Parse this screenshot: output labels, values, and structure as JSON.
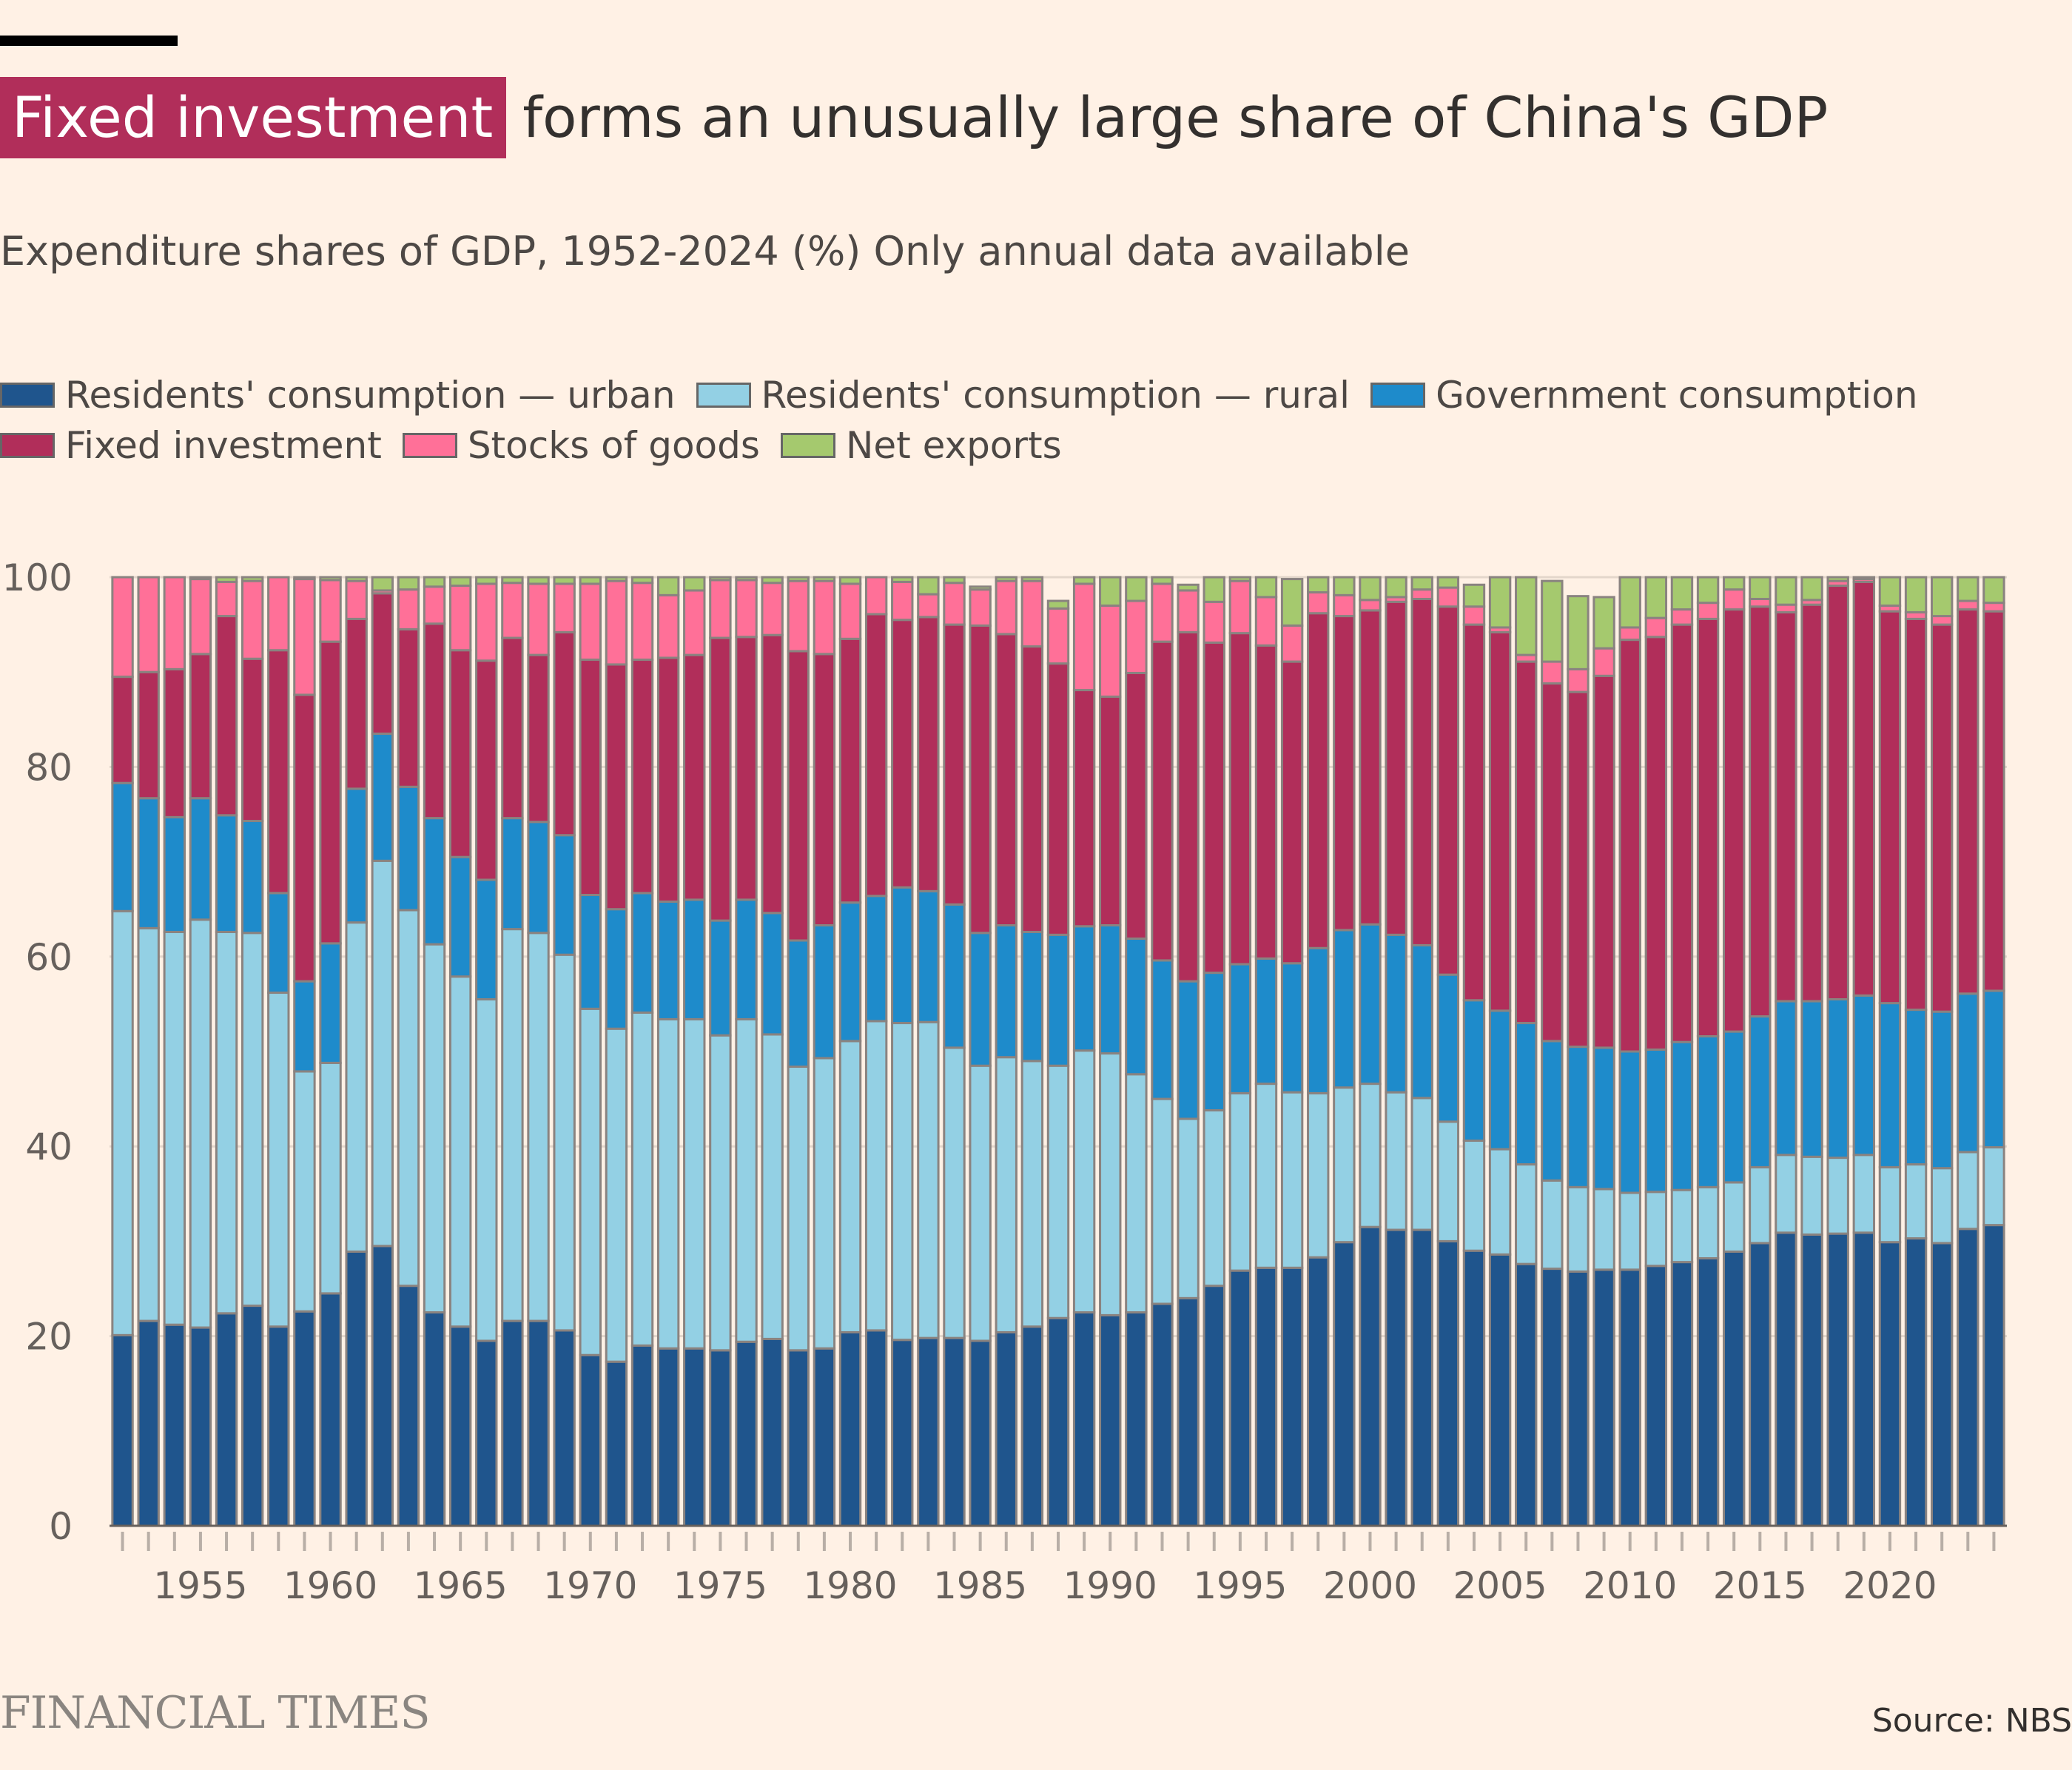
{
  "header": {
    "highlight": "Fixed investment",
    "title_rest": "forms an unusually large share of China's GDP",
    "subtitle": "Expenditure shares of GDP, 1952-2024 (%) Only annual data available"
  },
  "footer": {
    "brand": "FINANCIAL TIMES",
    "source": "Source: NBS"
  },
  "chart_data": {
    "type": "bar",
    "stacked": true,
    "title": "Fixed investment forms an unusually large share of China's GDP",
    "subtitle": "Expenditure shares of GDP, 1952-2024 (%) Only annual data available",
    "xlabel": "",
    "ylabel": "",
    "ylim": [
      0,
      100
    ],
    "yticks": [
      0,
      20,
      40,
      60,
      80,
      100
    ],
    "xtick_labels": [
      "1955",
      "1960",
      "1965",
      "1970",
      "1975",
      "1980",
      "1985",
      "1990",
      "1995",
      "2000",
      "2005",
      "2010",
      "2015",
      "2020"
    ],
    "grid": true,
    "legend_position": "top-left",
    "categories": [
      1952,
      1953,
      1954,
      1955,
      1956,
      1957,
      1958,
      1959,
      1960,
      1961,
      1962,
      1963,
      1964,
      1965,
      1966,
      1967,
      1968,
      1969,
      1970,
      1971,
      1972,
      1973,
      1974,
      1975,
      1976,
      1977,
      1978,
      1979,
      1980,
      1981,
      1982,
      1983,
      1984,
      1985,
      1986,
      1987,
      1988,
      1989,
      1990,
      1991,
      1992,
      1993,
      1994,
      1995,
      1996,
      1997,
      1998,
      1999,
      2000,
      2001,
      2002,
      2003,
      2004,
      2005,
      2006,
      2007,
      2008,
      2009,
      2010,
      2011,
      2012,
      2013,
      2014,
      2015,
      2016,
      2017,
      2018,
      2019,
      2020,
      2021,
      2022,
      2023,
      2024
    ],
    "series": [
      {
        "name": "Residents' consumption — urban",
        "color": "#1F558D",
        "values": [
          20.1,
          21.6,
          21.2,
          20.9,
          22.4,
          23.2,
          21.0,
          22.6,
          24.5,
          28.9,
          29.5,
          25.3,
          22.5,
          21.0,
          19.5,
          21.6,
          21.6,
          20.6,
          18.0,
          17.3,
          19.0,
          18.7,
          18.7,
          18.5,
          19.4,
          19.7,
          18.5,
          18.7,
          20.4,
          20.6,
          19.6,
          19.8,
          19.8,
          19.5,
          20.4,
          21.0,
          21.9,
          22.5,
          22.2,
          22.5,
          23.4,
          24.0,
          25.3,
          26.9,
          27.2,
          27.2,
          28.3,
          29.9,
          31.5,
          31.2,
          31.2,
          30.0,
          29.0,
          28.6,
          27.6,
          27.1,
          26.8,
          27.0,
          27.0,
          27.4,
          27.8,
          28.2,
          28.9,
          29.8,
          30.9,
          30.7,
          30.8,
          30.9,
          29.9,
          30.3,
          29.8,
          31.3,
          31.7
        ]
      },
      {
        "name": "Residents' consumption — rural",
        "color": "#93D0E4",
        "values": [
          44.7,
          41.4,
          41.4,
          43.0,
          40.2,
          39.3,
          35.2,
          25.3,
          24.3,
          34.7,
          40.6,
          39.6,
          38.8,
          36.9,
          36.0,
          41.3,
          40.9,
          39.6,
          36.5,
          35.1,
          35.1,
          34.7,
          34.7,
          33.2,
          34.0,
          32.1,
          29.9,
          30.6,
          30.7,
          32.6,
          33.4,
          33.3,
          30.6,
          29.0,
          29.0,
          28.0,
          26.6,
          27.6,
          27.6,
          25.1,
          21.6,
          18.9,
          18.5,
          18.7,
          19.4,
          18.5,
          17.3,
          16.3,
          15.1,
          14.5,
          13.9,
          12.6,
          11.6,
          11.1,
          10.5,
          9.3,
          8.9,
          8.5,
          8.1,
          7.8,
          7.6,
          7.5,
          7.3,
          8.0,
          8.2,
          8.2,
          8.0,
          8.2,
          7.9,
          7.8,
          7.9,
          8.1,
          8.2
        ]
      },
      {
        "name": "Government consumption",
        "color": "#1E8BCB",
        "values": [
          13.5,
          13.7,
          12.1,
          12.8,
          12.3,
          11.8,
          10.5,
          9.5,
          12.6,
          14.1,
          13.4,
          13.0,
          13.3,
          12.6,
          12.6,
          11.7,
          11.7,
          12.6,
          12.0,
          12.6,
          12.6,
          12.4,
          12.6,
          12.1,
          12.6,
          12.8,
          13.3,
          14.0,
          14.6,
          13.2,
          14.3,
          13.8,
          15.1,
          14.0,
          13.9,
          13.6,
          13.8,
          13.1,
          13.5,
          14.3,
          14.6,
          14.5,
          14.5,
          13.6,
          13.2,
          13.6,
          15.3,
          16.6,
          16.8,
          16.6,
          16.1,
          15.5,
          14.8,
          14.6,
          14.9,
          14.7,
          14.8,
          14.9,
          14.9,
          15.0,
          15.6,
          15.9,
          15.9,
          15.9,
          16.2,
          16.4,
          16.7,
          16.8,
          17.3,
          16.3,
          16.5,
          16.7,
          16.5
        ]
      },
      {
        "name": "Fixed investment",
        "color": "#B12E5A",
        "values": [
          11.2,
          13.3,
          15.6,
          15.2,
          21.0,
          17.1,
          25.6,
          30.2,
          31.8,
          17.9,
          14.8,
          16.6,
          20.5,
          21.8,
          23.1,
          19.0,
          17.6,
          21.4,
          24.8,
          25.8,
          24.6,
          25.7,
          25.8,
          29.8,
          27.7,
          29.3,
          30.5,
          28.6,
          27.8,
          29.7,
          28.2,
          28.9,
          29.5,
          32.4,
          30.7,
          30.1,
          28.6,
          24.9,
          24.1,
          28.0,
          33.6,
          36.8,
          34.8,
          34.9,
          33.0,
          31.8,
          35.3,
          33.1,
          33.1,
          35.1,
          36.5,
          38.8,
          39.6,
          39.9,
          38.1,
          37.7,
          37.4,
          39.2,
          43.4,
          43.5,
          44.0,
          44.0,
          44.5,
          43.2,
          41.0,
          41.8,
          43.6,
          43.6,
          41.3,
          41.2,
          40.8,
          40.5,
          40.0
        ]
      },
      {
        "name": "Stocks of goods",
        "color": "#FF7098",
        "values": [
          10.5,
          10.0,
          9.7,
          7.9,
          3.6,
          8.2,
          7.8,
          12.2,
          6.5,
          4.0,
          0.3,
          4.2,
          3.9,
          6.8,
          8.1,
          5.8,
          7.5,
          5.1,
          8.0,
          8.8,
          8.1,
          6.6,
          6.8,
          6.1,
          6.0,
          5.5,
          7.4,
          7.7,
          5.8,
          4.4,
          4.0,
          2.4,
          4.4,
          3.8,
          5.6,
          6.9,
          5.8,
          11.2,
          9.6,
          7.6,
          6.1,
          4.4,
          4.3,
          5.5,
          5.1,
          3.8,
          2.2,
          2.2,
          1.1,
          0.5,
          1.0,
          2.0,
          1.9,
          0.5,
          0.7,
          2.3,
          2.4,
          2.9,
          1.3,
          2.0,
          1.6,
          1.7,
          2.1,
          0.8,
          0.8,
          0.5,
          0.5,
          0.3,
          0.6,
          0.7,
          0.9,
          0.9,
          0.9
        ]
      },
      {
        "name": "Net exports",
        "color": "#A5C96E",
        "values": [
          0.0,
          0.0,
          0.0,
          0.2,
          0.5,
          0.4,
          0.0,
          0.2,
          0.3,
          0.4,
          1.4,
          1.3,
          1.0,
          0.9,
          0.7,
          0.6,
          0.7,
          0.7,
          0.7,
          0.4,
          0.6,
          1.9,
          1.4,
          0.3,
          0.3,
          0.6,
          0.4,
          0.4,
          0.7,
          0.5,
          2.1,
          1.8,
          0.6,
          0.3,
          0.4,
          0.4,
          0.8,
          0.7,
          3.0,
          2.5,
          0.7,
          0.6,
          2.6,
          2.4,
          2.1,
          4.9,
          4.4,
          3.0,
          2.4,
          2.1,
          1.3,
          1.1,
          2.3,
          5.3,
          8.2,
          8.5,
          7.7,
          5.4,
          5.3,
          4.3,
          3.4,
          2.7,
          2.5,
          2.3,
          2.9,
          2.4,
          0.4,
          0.2,
          3.0,
          3.7,
          4.1,
          2.5,
          3.0
        ]
      }
    ]
  }
}
